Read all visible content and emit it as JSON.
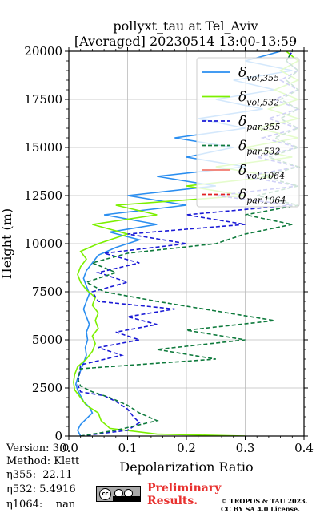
{
  "chart_data": {
    "type": "line",
    "title": "pollyxt_tau at Tel_Aviv",
    "subtitle": "[Averaged] 20230514 13:00-13:59",
    "xlabel": "Depolarization Ratio",
    "ylabel": "Height (m)",
    "xlim": [
      0.0,
      0.4
    ],
    "ylim": [
      0,
      20000
    ],
    "xticks": [
      "0.0",
      "0.1",
      "0.2",
      "0.3",
      "0.4"
    ],
    "yticks": [
      "0",
      "2500",
      "5000",
      "7500",
      "10000",
      "12500",
      "15000",
      "17500",
      "20000"
    ],
    "grid": true,
    "legend_position": "top-right",
    "series": [
      {
        "name": "δvol,355",
        "color": "#2a8ef0",
        "style": "solid",
        "points": [
          [
            0.02,
            0
          ],
          [
            0.015,
            300
          ],
          [
            0.02,
            600
          ],
          [
            0.03,
            900
          ],
          [
            0.04,
            1200
          ],
          [
            0.035,
            1500
          ],
          [
            0.025,
            1800
          ],
          [
            0.02,
            2100
          ],
          [
            0.015,
            2400
          ],
          [
            0.012,
            2700
          ],
          [
            0.015,
            3000
          ],
          [
            0.02,
            3400
          ],
          [
            0.025,
            3800
          ],
          [
            0.03,
            4200
          ],
          [
            0.028,
            4600
          ],
          [
            0.032,
            5000
          ],
          [
            0.03,
            5400
          ],
          [
            0.035,
            5800
          ],
          [
            0.03,
            6200
          ],
          [
            0.025,
            6600
          ],
          [
            0.03,
            7000
          ],
          [
            0.035,
            7400
          ],
          [
            0.03,
            7800
          ],
          [
            0.025,
            8200
          ],
          [
            0.03,
            8600
          ],
          [
            0.04,
            9000
          ],
          [
            0.05,
            9400
          ],
          [
            0.08,
            9800
          ],
          [
            0.12,
            10200
          ],
          [
            0.07,
            10600
          ],
          [
            0.15,
            11000
          ],
          [
            0.06,
            11500
          ],
          [
            0.2,
            12000
          ],
          [
            0.1,
            12500
          ],
          [
            0.25,
            13000
          ],
          [
            0.15,
            13500
          ],
          [
            0.3,
            14000
          ],
          [
            0.2,
            14500
          ],
          [
            0.28,
            15000
          ],
          [
            0.18,
            15500
          ],
          [
            0.3,
            16000
          ],
          [
            0.22,
            16500
          ],
          [
            0.33,
            17000
          ],
          [
            0.25,
            17500
          ],
          [
            0.35,
            18000
          ],
          [
            0.28,
            18500
          ],
          [
            0.38,
            19000
          ],
          [
            0.3,
            19500
          ],
          [
            0.36,
            20000
          ]
        ]
      },
      {
        "name": "δvol,532",
        "color": "#7cf000",
        "style": "solid",
        "points": [
          [
            0.3,
            0
          ],
          [
            0.15,
            100
          ],
          [
            0.07,
            400
          ],
          [
            0.055,
            800
          ],
          [
            0.05,
            1200
          ],
          [
            0.03,
            1600
          ],
          [
            0.02,
            2000
          ],
          [
            0.01,
            2400
          ],
          [
            0.008,
            2800
          ],
          [
            0.01,
            3200
          ],
          [
            0.015,
            3600
          ],
          [
            0.03,
            4000
          ],
          [
            0.04,
            4400
          ],
          [
            0.045,
            4800
          ],
          [
            0.04,
            5200
          ],
          [
            0.05,
            5600
          ],
          [
            0.045,
            6000
          ],
          [
            0.05,
            6400
          ],
          [
            0.04,
            6800
          ],
          [
            0.045,
            7200
          ],
          [
            0.03,
            7600
          ],
          [
            0.02,
            8000
          ],
          [
            0.015,
            8400
          ],
          [
            0.02,
            8800
          ],
          [
            0.03,
            9200
          ],
          [
            0.02,
            9600
          ],
          [
            0.05,
            10000
          ],
          [
            0.1,
            10500
          ],
          [
            0.04,
            11000
          ],
          [
            0.15,
            11500
          ],
          [
            0.08,
            12000
          ],
          [
            0.3,
            12500
          ],
          [
            0.2,
            13000
          ],
          [
            0.35,
            13500
          ],
          [
            0.25,
            14000
          ],
          [
            0.38,
            14500
          ],
          [
            0.3,
            15000
          ],
          [
            0.39,
            15500
          ],
          [
            0.32,
            16000
          ],
          [
            0.39,
            16500
          ],
          [
            0.34,
            17000
          ],
          [
            0.39,
            17500
          ],
          [
            0.35,
            18000
          ],
          [
            0.39,
            18500
          ],
          [
            0.36,
            19000
          ],
          [
            0.39,
            19500
          ],
          [
            0.37,
            20000
          ]
        ]
      },
      {
        "name": "δpar,355",
        "color": "#1a1ad6",
        "style": "dashed",
        "points": [
          [
            0.02,
            0
          ],
          [
            0.1,
            300
          ],
          [
            0.12,
            700
          ],
          [
            0.11,
            1000
          ],
          [
            0.1,
            1400
          ],
          [
            0.08,
            1800
          ],
          [
            0.06,
            2100
          ],
          [
            0.02,
            2300
          ],
          [
            0.015,
            2700
          ],
          [
            0.018,
            3200
          ],
          [
            0.02,
            3700
          ],
          [
            0.09,
            4200
          ],
          [
            0.05,
            4600
          ],
          [
            0.12,
            5000
          ],
          [
            0.08,
            5400
          ],
          [
            0.15,
            5800
          ],
          [
            0.1,
            6200
          ],
          [
            0.18,
            6600
          ],
          [
            0.05,
            7000
          ],
          [
            0.04,
            7500
          ],
          [
            0.1,
            8000
          ],
          [
            0.05,
            8500
          ],
          [
            0.12,
            9000
          ],
          [
            0.06,
            9500
          ],
          [
            0.2,
            10000
          ],
          [
            0.1,
            10500
          ],
          [
            0.3,
            11000
          ],
          [
            0.2,
            11500
          ],
          [
            0.38,
            12000
          ],
          [
            0.25,
            12500
          ],
          [
            0.39,
            13000
          ],
          [
            0.3,
            13500
          ],
          [
            0.39,
            14000
          ],
          [
            0.32,
            14500
          ],
          [
            0.39,
            15000
          ],
          [
            0.33,
            15500
          ],
          [
            0.39,
            16000
          ],
          [
            0.34,
            16500
          ],
          [
            0.39,
            17000
          ],
          [
            0.35,
            17500
          ],
          [
            0.39,
            18000
          ],
          [
            0.36,
            18500
          ],
          [
            0.39,
            19000
          ],
          [
            0.37,
            19500
          ],
          [
            0.38,
            20000
          ]
        ]
      },
      {
        "name": "δpar,532",
        "color": "#0e7a3c",
        "style": "dashed",
        "points": [
          [
            0.02,
            0
          ],
          [
            0.08,
            300
          ],
          [
            0.15,
            800
          ],
          [
            0.12,
            1200
          ],
          [
            0.1,
            1600
          ],
          [
            0.07,
            2000
          ],
          [
            0.04,
            2300
          ],
          [
            0.02,
            2600
          ],
          [
            0.015,
            3000
          ],
          [
            0.02,
            3500
          ],
          [
            0.25,
            4000
          ],
          [
            0.15,
            4500
          ],
          [
            0.3,
            5000
          ],
          [
            0.2,
            5500
          ],
          [
            0.35,
            6000
          ],
          [
            0.25,
            6500
          ],
          [
            0.15,
            7000
          ],
          [
            0.06,
            7500
          ],
          [
            0.03,
            8000
          ],
          [
            0.08,
            8500
          ],
          [
            0.04,
            9000
          ],
          [
            0.1,
            9500
          ],
          [
            0.25,
            10000
          ],
          [
            0.3,
            10500
          ],
          [
            0.38,
            11000
          ],
          [
            0.3,
            11500
          ],
          [
            0.39,
            12000
          ],
          [
            0.32,
            12500
          ],
          [
            0.39,
            13000
          ],
          [
            0.33,
            13500
          ],
          [
            0.39,
            14000
          ],
          [
            0.34,
            14500
          ],
          [
            0.39,
            15000
          ],
          [
            0.35,
            15500
          ],
          [
            0.39,
            16000
          ],
          [
            0.36,
            16500
          ],
          [
            0.39,
            17000
          ],
          [
            0.36,
            17500
          ],
          [
            0.39,
            18000
          ],
          [
            0.37,
            18500
          ],
          [
            0.39,
            19000
          ],
          [
            0.37,
            19500
          ],
          [
            0.38,
            20000
          ]
        ]
      },
      {
        "name": "δvol,1064",
        "color": "#f27a6e",
        "style": "solid",
        "points": []
      },
      {
        "name": "δpar,1064",
        "color": "#e32222",
        "style": "dashed",
        "points": []
      }
    ]
  },
  "legend": [
    {
      "symbol": "δ",
      "sub": "vol,355"
    },
    {
      "symbol": "δ",
      "sub": "vol,532"
    },
    {
      "symbol": "δ",
      "sub": "par,355"
    },
    {
      "symbol": "δ",
      "sub": "par,532"
    },
    {
      "symbol": "δ",
      "sub": "vol,1064"
    },
    {
      "symbol": "δ",
      "sub": "par,1064"
    }
  ],
  "info": {
    "version": "Version: 3.0",
    "method": "Method: Klett",
    "eta355": "η355:  22.11",
    "eta532": "η532: 5.4916",
    "eta1064": "η1064:    nan"
  },
  "footer": {
    "preliminary_line1": "Preliminary",
    "preliminary_line2": "Results.",
    "copyright_line1": "© TROPOS & TAU 2023.",
    "copyright_line2": "CC BY SA 4.0 License.",
    "license_logo": "cc-by-sa-logo"
  }
}
